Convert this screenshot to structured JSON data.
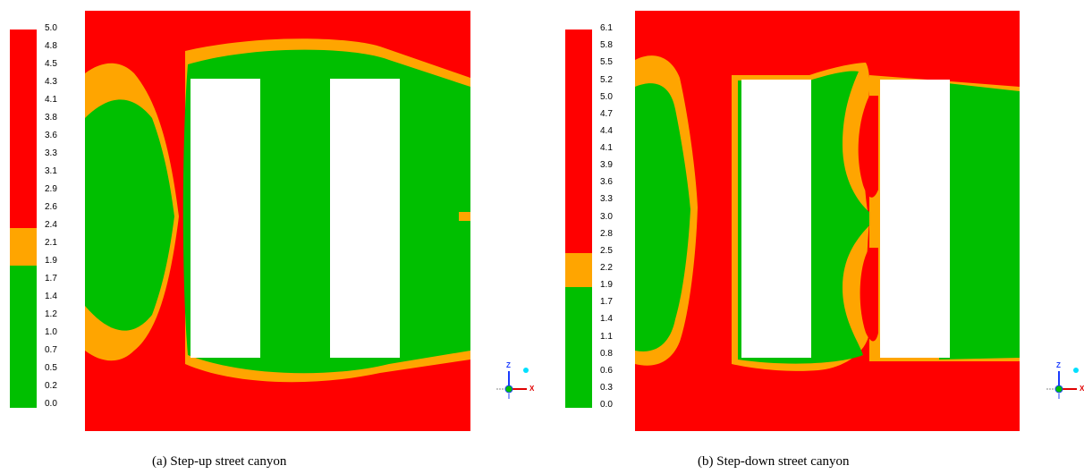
{
  "colors": {
    "high": "#ff0000",
    "mid": "#ffa500",
    "low": "#00bf00",
    "building": "#ffffff"
  },
  "panels": [
    {
      "caption": "(a) Step-up street canyon",
      "legend": {
        "ticks": [
          "5.0",
          "4.8",
          "4.5",
          "4.3",
          "4.1",
          "3.8",
          "3.6",
          "3.3",
          "3.1",
          "2.9",
          "2.6",
          "2.4",
          "2.1",
          "1.9",
          "1.7",
          "1.4",
          "1.2",
          "1.0",
          "0.7",
          "0.5",
          "0.2",
          "0.0"
        ],
        "bands": [
          {
            "from": "0.0",
            "to": "1.9",
            "color": "low"
          },
          {
            "from": "1.9",
            "to": "2.4",
            "color": "mid"
          },
          {
            "from": "2.4",
            "to": "5.0",
            "color": "high"
          }
        ]
      },
      "axes": {
        "z": "Z",
        "x": "X"
      }
    },
    {
      "caption": "(b) Step-down street canyon",
      "legend": {
        "ticks": [
          "6.1",
          "5.8",
          "5.5",
          "5.2",
          "5.0",
          "4.7",
          "4.4",
          "4.1",
          "3.9",
          "3.6",
          "3.3",
          "3.0",
          "2.8",
          "2.5",
          "2.2",
          "1.9",
          "1.7",
          "1.4",
          "1.1",
          "0.8",
          "0.6",
          "0.3",
          "0.0"
        ],
        "bands": [
          {
            "from": "0.0",
            "to": "1.9",
            "color": "low"
          },
          {
            "from": "1.9",
            "to": "2.5",
            "color": "mid"
          },
          {
            "from": "2.5",
            "to": "6.1",
            "color": "high"
          }
        ]
      },
      "axes": {
        "z": "Z",
        "x": "X"
      }
    }
  ]
}
